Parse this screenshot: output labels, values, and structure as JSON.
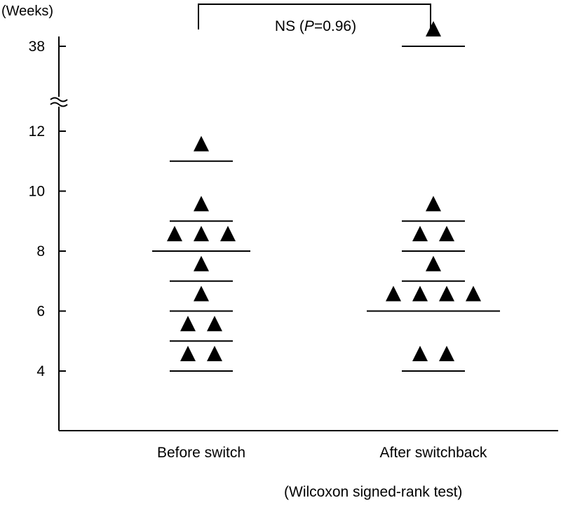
{
  "chart_data": {
    "type": "scatter",
    "y_unit_label": "(Weeks)",
    "y_ticks": [
      4,
      6,
      8,
      10,
      12,
      38
    ],
    "y_axis_break": true,
    "categories": [
      "Before switch",
      "After switchback"
    ],
    "groups": [
      {
        "category": "Before switch",
        "levels": [
          {
            "value": 11,
            "count": 1
          },
          {
            "value": 9,
            "count": 1
          },
          {
            "value": 8,
            "count": 3
          },
          {
            "value": 7,
            "count": 1
          },
          {
            "value": 6,
            "count": 1
          },
          {
            "value": 5,
            "count": 2
          },
          {
            "value": 4,
            "count": 2
          }
        ]
      },
      {
        "category": "After switchback",
        "levels": [
          {
            "value": 38,
            "count": 1
          },
          {
            "value": 9,
            "count": 1
          },
          {
            "value": 8,
            "count": 2
          },
          {
            "value": 7,
            "count": 1
          },
          {
            "value": 6,
            "count": 4
          },
          {
            "value": 4,
            "count": 2
          }
        ]
      }
    ],
    "significance": {
      "text_prefix": "NS (",
      "text_italic": "P",
      "text_suffix": "=0.96)"
    },
    "note": "(Wilcoxon signed-rank test)",
    "marker": "triangle",
    "marker_color": "#000000"
  }
}
